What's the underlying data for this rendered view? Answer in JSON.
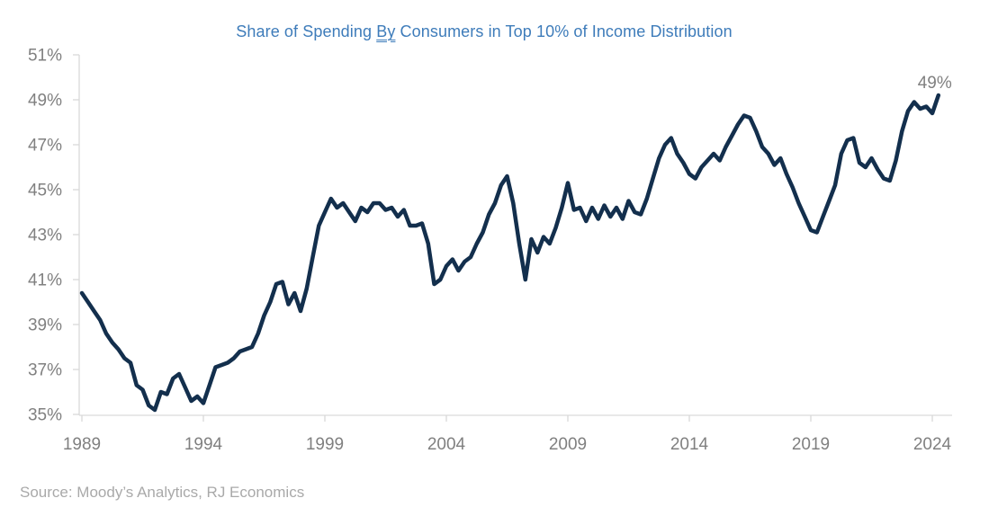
{
  "title": {
    "pre": "Share of Spending ",
    "underlined": "By",
    "post": " Consumers in Top 10% of Income Distribution"
  },
  "source": "Source: Moody’s Analytics, RJ Economics",
  "colors": {
    "title": "#3E7CBA",
    "line": "#132F4D",
    "axis_text": "#808080",
    "axis_line": "#D9D9D9",
    "annotation": "#808080",
    "source_text": "#A9A9A9",
    "background": "#FFFFFF"
  },
  "chart_data": {
    "type": "line",
    "title": "Share of Spending By Consumers in Top 10% of Income Distribution",
    "xlabel": "",
    "ylabel": "",
    "grid": false,
    "legend": false,
    "ylim": [
      35,
      51
    ],
    "y_tick_step": 2,
    "y_tick_values": [
      51,
      49,
      47,
      45,
      43,
      41,
      39,
      37,
      35
    ],
    "y_tick_labels": [
      "51%",
      "49%",
      "47%",
      "45%",
      "43%",
      "41%",
      "39%",
      "37%",
      "35%"
    ],
    "x_tick_years": [
      1989,
      1994,
      1999,
      2004,
      2009,
      2014,
      2019,
      2024
    ],
    "x_tick_labels": [
      "1989",
      "1994",
      "1999",
      "2004",
      "2009",
      "2014",
      "2019",
      "2024"
    ],
    "x_start_year": 1989,
    "x_end": 2024.25,
    "points_per_year": 4,
    "frequency": "quarterly",
    "end_label": "49%",
    "unit": "percent",
    "values": [
      40.4,
      40.0,
      39.6,
      39.2,
      38.6,
      38.2,
      37.9,
      37.5,
      37.3,
      36.3,
      36.1,
      35.4,
      35.2,
      36.0,
      35.9,
      36.6,
      36.8,
      36.2,
      35.6,
      35.8,
      35.5,
      36.3,
      37.1,
      37.2,
      37.3,
      37.5,
      37.8,
      37.9,
      38.0,
      38.6,
      39.4,
      40.0,
      40.8,
      40.9,
      39.9,
      40.4,
      39.6,
      40.6,
      42.0,
      43.4,
      44.0,
      44.6,
      44.2,
      44.4,
      44.0,
      43.6,
      44.2,
      44.0,
      44.4,
      44.4,
      44.1,
      44.2,
      43.8,
      44.1,
      43.4,
      43.4,
      43.5,
      42.6,
      40.8,
      41.0,
      41.6,
      41.9,
      41.4,
      41.8,
      42.0,
      42.6,
      43.1,
      43.9,
      44.4,
      45.2,
      45.6,
      44.4,
      42.6,
      41.0,
      42.8,
      42.2,
      42.9,
      42.6,
      43.3,
      44.2,
      45.3,
      44.1,
      44.2,
      43.6,
      44.2,
      43.7,
      44.3,
      43.8,
      44.2,
      43.7,
      44.5,
      44.0,
      43.9,
      44.6,
      45.5,
      46.4,
      47.0,
      47.3,
      46.6,
      46.2,
      45.7,
      45.5,
      46.0,
      46.3,
      46.6,
      46.3,
      46.9,
      47.4,
      47.9,
      48.3,
      48.2,
      47.6,
      46.9,
      46.6,
      46.1,
      46.4,
      45.7,
      45.1,
      44.4,
      43.8,
      43.2,
      43.1,
      43.8,
      44.5,
      45.2,
      46.6,
      47.2,
      47.3,
      46.2,
      46.0,
      46.4,
      45.9,
      45.5,
      45.4,
      46.3,
      47.6,
      48.5,
      48.9,
      48.6,
      48.7,
      48.4,
      49.2
    ]
  }
}
